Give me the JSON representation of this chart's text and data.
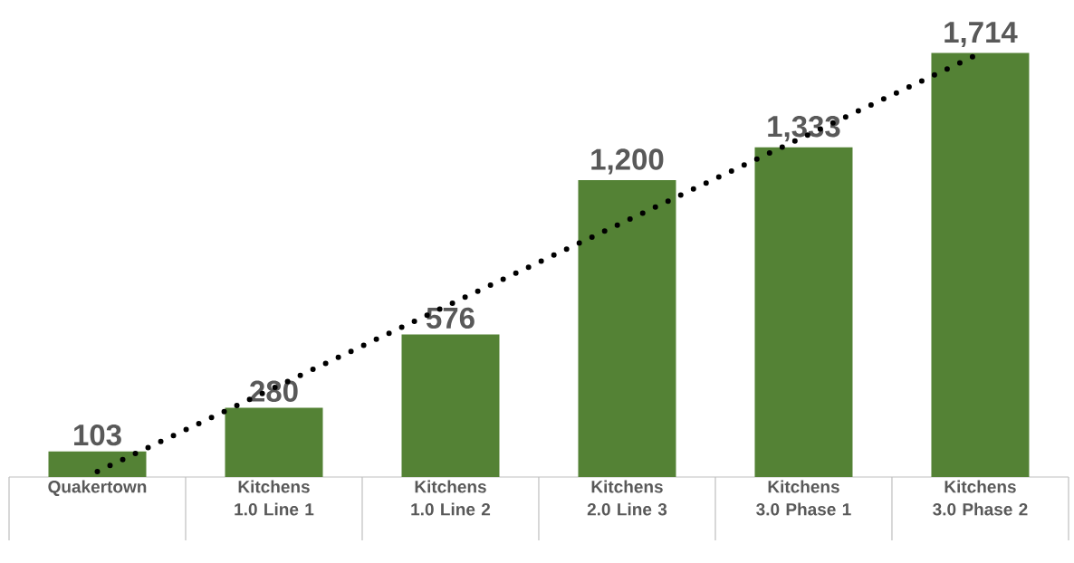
{
  "chart_data": {
    "type": "bar",
    "categories": [
      "Quakertown",
      "Kitchens 1.0 Line 1",
      "Kitchens 1.0 Line 2",
      "Kitchens 2.0 Line 3",
      "Kitchens 3.0 Phase 1",
      "Kitchens 3.0 Phase 2"
    ],
    "series": [
      {
        "color": "#548235",
        "values": [
          103,
          280,
          576,
          1200,
          1333,
          1714
        ],
        "value_labels": [
          "103",
          "280",
          "576",
          "1,200",
          "1,333",
          "1,714"
        ]
      },
      {
        "type": "line",
        "color": "#000000",
        "line_style": "dotted",
        "values": [
          22,
          360,
          699,
          1037,
          1375,
          1713
        ]
      }
    ]
  }
}
